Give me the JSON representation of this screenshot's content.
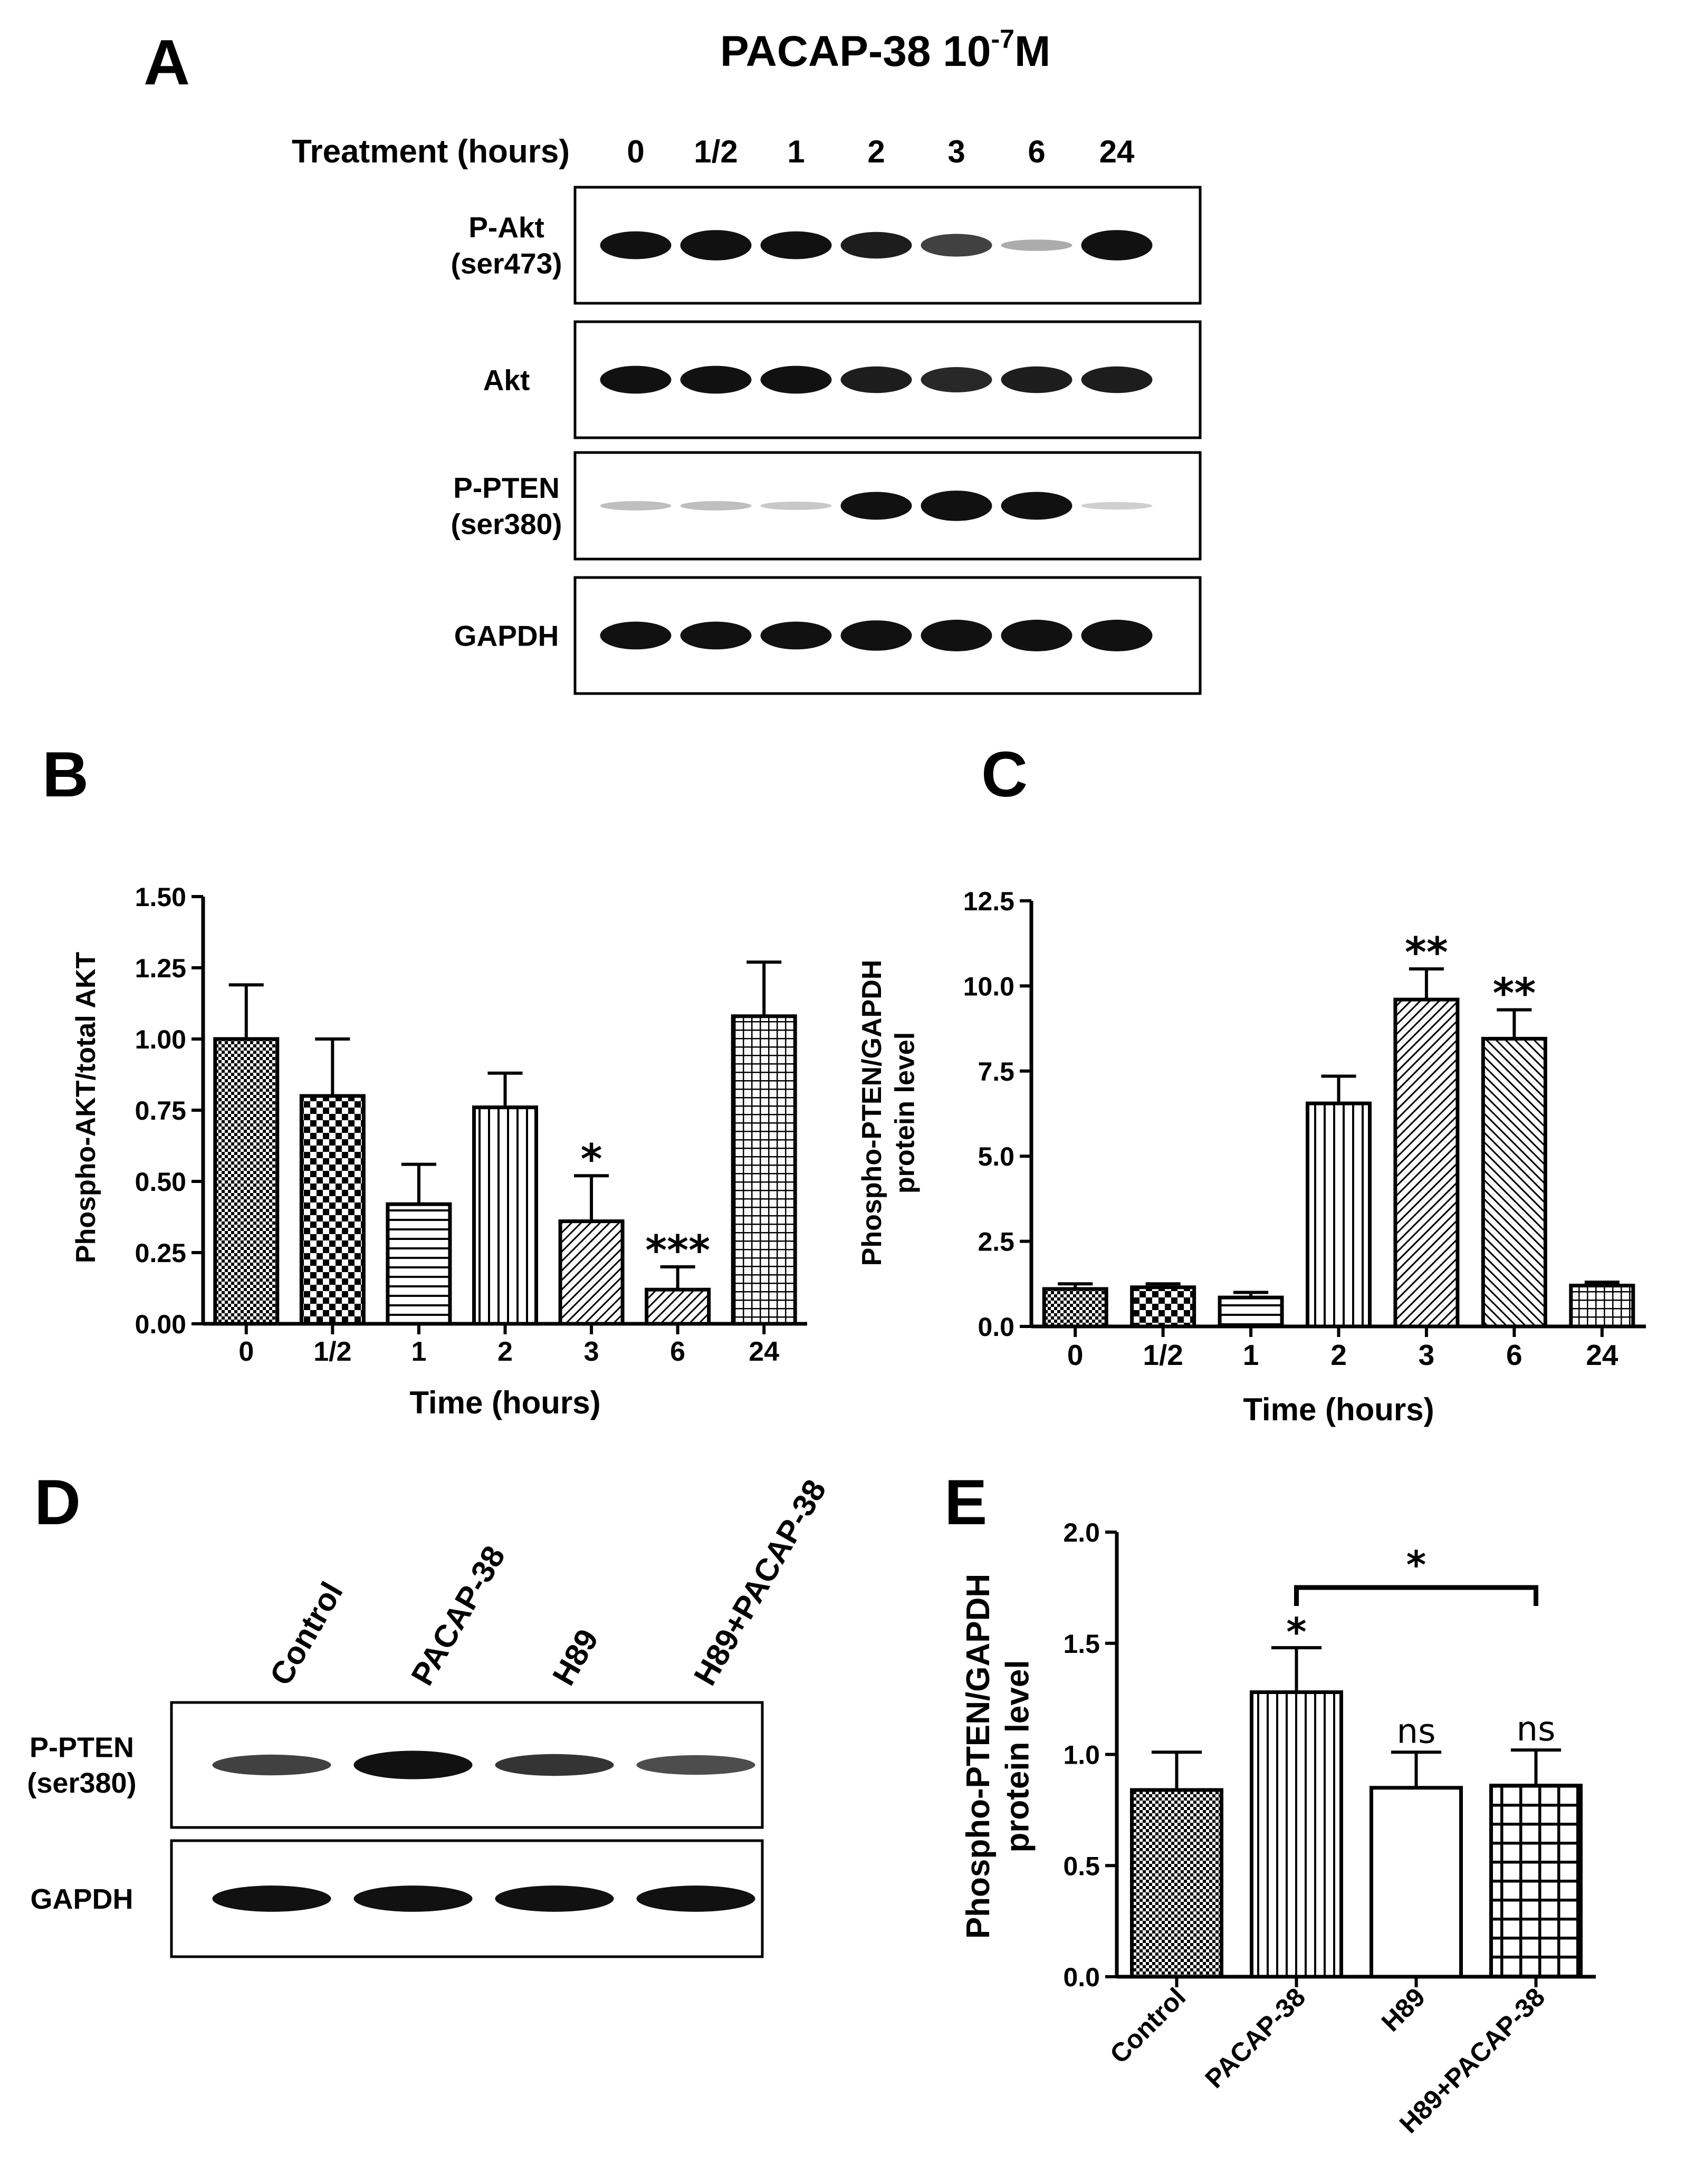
{
  "panels": {
    "A": {
      "letter": "A",
      "title_main": "PACAP-38 10",
      "title_exp": "-7",
      "title_unit": "M",
      "treatment_label": "Treatment (hours)",
      "lanes": [
        "0",
        "1/2",
        "1",
        "2",
        "3",
        "6",
        "24"
      ],
      "blots": [
        {
          "label": [
            "P-Akt",
            "(ser473)"
          ],
          "intensity": [
            0.85,
            0.95,
            0.85,
            0.8,
            0.65,
            0.2,
            0.95
          ]
        },
        {
          "label": [
            "Akt"
          ],
          "intensity": [
            0.85,
            0.85,
            0.85,
            0.8,
            0.75,
            0.8,
            0.8
          ]
        },
        {
          "label": [
            "P-PTEN",
            "(ser380)"
          ],
          "intensity": [
            0.12,
            0.12,
            0.08,
            0.85,
            0.95,
            0.85,
            0.05
          ]
        },
        {
          "label": [
            "GAPDH"
          ],
          "intensity": [
            0.85,
            0.85,
            0.85,
            0.95,
            1.0,
            1.0,
            1.0
          ]
        }
      ]
    },
    "D": {
      "letter": "D",
      "lanes": [
        "Control",
        "PACAP-38",
        "H89",
        "H89+PACAP-38"
      ],
      "blots": [
        {
          "label": [
            "P-PTEN",
            "(ser380)"
          ],
          "intensity": [
            0.65,
            1.0,
            0.7,
            0.6
          ]
        },
        {
          "label": [
            "GAPDH"
          ],
          "intensity": [
            0.9,
            0.9,
            0.9,
            0.9
          ]
        }
      ]
    }
  },
  "colors": {
    "ink": "#000000",
    "background": "#ffffff",
    "blot_band": "#111111"
  },
  "chart_data": [
    {
      "panel": "B",
      "type": "bar",
      "categories": [
        "0",
        "1/2",
        "1",
        "2",
        "3",
        "6",
        "24"
      ],
      "values": [
        1.0,
        0.8,
        0.42,
        0.76,
        0.36,
        0.12,
        1.08
      ],
      "errors": [
        0.19,
        0.2,
        0.14,
        0.12,
        0.16,
        0.08,
        0.19
      ],
      "significance": [
        "",
        "",
        "",
        "",
        "*",
        "***",
        ""
      ],
      "patterns": [
        "fine-check",
        "check",
        "horizontal",
        "vertical",
        "diagonal",
        "diagonal",
        "grid"
      ],
      "xlabel": "Time (hours)",
      "ylabel": "Phospho-AKT/total AKT",
      "ylim": [
        0,
        1.5
      ],
      "yticks": [
        "0.00",
        "0.25",
        "0.50",
        "0.75",
        "1.00",
        "1.25",
        "1.50"
      ]
    },
    {
      "panel": "C",
      "type": "bar",
      "categories": [
        "0",
        "1/2",
        "1",
        "2",
        "3",
        "6",
        "24"
      ],
      "values": [
        1.1,
        1.15,
        0.85,
        6.55,
        9.6,
        8.45,
        1.2
      ],
      "errors": [
        0.15,
        0.1,
        0.15,
        0.8,
        0.9,
        0.85,
        0.1
      ],
      "significance": [
        "",
        "",
        "",
        "",
        "**",
        "**",
        ""
      ],
      "patterns": [
        "fine-check",
        "check",
        "horizontal",
        "vertical",
        "diagonal",
        "diagonal-rev",
        "grid"
      ],
      "xlabel": "Time (hours)",
      "ylabel": [
        "Phospho-PTEN/GAPDH",
        "protein level"
      ],
      "ylim": [
        0,
        12.5
      ],
      "yticks": [
        "0.0",
        "2.5",
        "5.0",
        "7.5",
        "10.0",
        "12.5"
      ]
    },
    {
      "panel": "E",
      "type": "bar",
      "categories": [
        "Control",
        "PACAP-38",
        "H89",
        "H89+PACAP-38"
      ],
      "values": [
        0.84,
        1.28,
        0.85,
        0.86
      ],
      "errors": [
        0.17,
        0.2,
        0.16,
        0.16
      ],
      "significance": [
        "",
        "*",
        "ns",
        "ns"
      ],
      "bracket": {
        "from": 1,
        "to": 3,
        "label": "*"
      },
      "patterns": [
        "fine-check",
        "vertical",
        "none",
        "big-grid"
      ],
      "xlabel": "",
      "ylabel": [
        "Phospho-PTEN/GAPDH",
        "protein level"
      ],
      "ylim": [
        0,
        2.0
      ],
      "yticks": [
        "0.0",
        "0.5",
        "1.0",
        "1.5",
        "2.0"
      ]
    }
  ]
}
